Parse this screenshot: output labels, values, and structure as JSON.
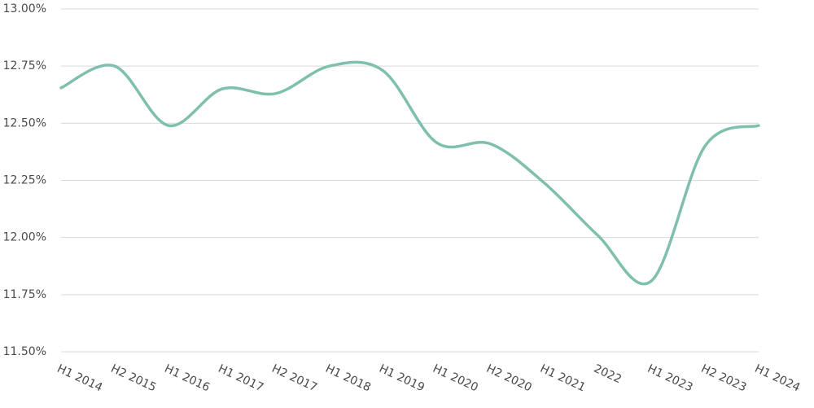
{
  "chart_data": {
    "type": "line",
    "categories": [
      "H1 2014",
      "H2 2015",
      "H1 2016",
      "H1 2017",
      "H2 2017",
      "H1 2018",
      "H1 2019",
      "H1 2020",
      "H2 2020",
      "H1 2021",
      "2022",
      "H1 2023",
      "H2 2023",
      "H1 2024"
    ],
    "series": [
      {
        "color": "#7fbfae",
        "values": [
          12.655,
          12.75,
          12.49,
          12.65,
          12.63,
          12.75,
          12.73,
          12.415,
          12.41,
          12.24,
          12.01,
          11.81,
          12.4,
          12.49
        ]
      }
    ],
    "ylim": [
      11.5,
      13.0
    ],
    "yticks": [
      {
        "value": 11.5,
        "label": "11.50%"
      },
      {
        "value": 11.75,
        "label": "11.75%"
      },
      {
        "value": 12.0,
        "label": "12.00%"
      },
      {
        "value": 12.25,
        "label": "12.25%"
      },
      {
        "value": 12.5,
        "label": "12.50%"
      },
      {
        "value": 12.75,
        "label": "12.75%"
      },
      {
        "value": 13.0,
        "label": "13.00%"
      }
    ],
    "grid": true
  }
}
